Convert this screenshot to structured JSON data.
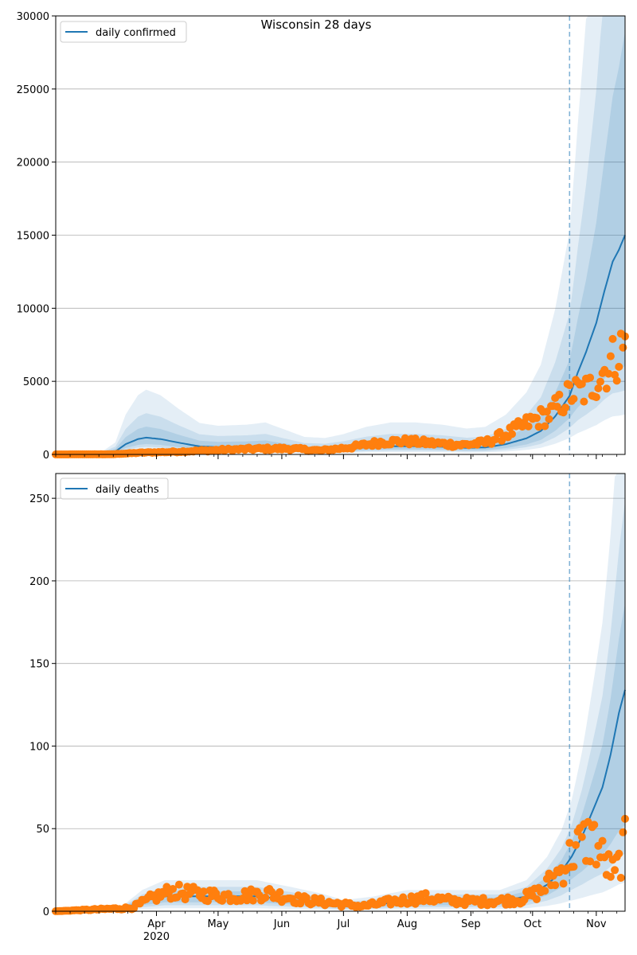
{
  "title": "Wisconsin 28 days",
  "chart_data": [
    {
      "type": "line",
      "legend": "daily confirmed",
      "legend_position": "upper-left",
      "grid": "horizontal",
      "ylim": [
        0,
        30000
      ],
      "yticks": [
        0,
        5000,
        10000,
        15000,
        20000,
        25000,
        30000
      ],
      "ytick_labels": [
        "0",
        "5000",
        "10000",
        "15000",
        "20000",
        "25000",
        "30000"
      ],
      "xlim": [
        "2020-02-12",
        "2020-11-15"
      ],
      "forecast_start": "2020-10-19",
      "line_color": "#1f77b4",
      "band_color": "#1f77b4",
      "points_color": "#ff7f0e",
      "model_line": [
        [
          "2020-02-12",
          0
        ],
        [
          "2020-03-05",
          20
        ],
        [
          "2020-03-12",
          200
        ],
        [
          "2020-03-17",
          700
        ],
        [
          "2020-03-23",
          1050
        ],
        [
          "2020-03-27",
          1150
        ],
        [
          "2020-04-03",
          1050
        ],
        [
          "2020-04-12",
          800
        ],
        [
          "2020-04-22",
          550
        ],
        [
          "2020-05-01",
          500
        ],
        [
          "2020-05-15",
          520
        ],
        [
          "2020-05-24",
          560
        ],
        [
          "2020-06-01",
          450
        ],
        [
          "2020-06-12",
          300
        ],
        [
          "2020-06-22",
          280
        ],
        [
          "2020-07-01",
          350
        ],
        [
          "2020-07-12",
          480
        ],
        [
          "2020-07-24",
          560
        ],
        [
          "2020-08-05",
          560
        ],
        [
          "2020-08-18",
          520
        ],
        [
          "2020-08-30",
          450
        ],
        [
          "2020-09-08",
          480
        ],
        [
          "2020-09-18",
          700
        ],
        [
          "2020-09-28",
          1100
        ],
        [
          "2020-10-05",
          1600
        ],
        [
          "2020-10-12",
          2600
        ],
        [
          "2020-10-19",
          4000
        ],
        [
          "2020-10-23",
          5600
        ],
        [
          "2020-10-27",
          7000
        ],
        [
          "2020-11-01",
          9000
        ],
        [
          "2020-11-05",
          11200
        ],
        [
          "2020-11-09",
          13200
        ],
        [
          "2020-11-12",
          14000
        ],
        [
          "2020-11-15",
          15000
        ]
      ],
      "bands": [
        {
          "label": "outer",
          "lower": 0.28,
          "upper": 3.8
        },
        {
          "label": "middle",
          "lower": 0.45,
          "upper": 2.4
        },
        {
          "label": "inner",
          "lower": 0.62,
          "upper": 1.6
        }
      ],
      "observed_trend": [
        [
          "2020-02-12",
          0
        ],
        [
          "2020-03-10",
          10
        ],
        [
          "2020-03-25",
          120
        ],
        [
          "2020-04-10",
          180
        ],
        [
          "2020-05-01",
          300
        ],
        [
          "2020-05-20",
          380
        ],
        [
          "2020-06-05",
          400
        ],
        [
          "2020-06-20",
          260
        ],
        [
          "2020-07-05",
          500
        ],
        [
          "2020-07-20",
          850
        ],
        [
          "2020-08-01",
          900
        ],
        [
          "2020-08-15",
          750
        ],
        [
          "2020-08-28",
          650
        ],
        [
          "2020-09-08",
          800
        ],
        [
          "2020-09-20",
          1500
        ],
        [
          "2020-10-01",
          2300
        ],
        [
          "2020-10-10",
          2800
        ],
        [
          "2020-10-20",
          4200
        ],
        [
          "2020-10-28",
          4400
        ],
        [
          "2020-11-05",
          5800
        ],
        [
          "2020-11-10",
          6600
        ],
        [
          "2020-11-15",
          7500
        ]
      ],
      "observed_spread": 0.28
    },
    {
      "type": "line",
      "legend": "daily deaths",
      "legend_position": "upper-left",
      "grid": "horizontal",
      "ylim": [
        0,
        265
      ],
      "yticks": [
        0,
        50,
        100,
        150,
        200,
        250
      ],
      "ytick_labels": [
        "0",
        "50",
        "100",
        "150",
        "200",
        "250"
      ],
      "xlim": [
        "2020-02-12",
        "2020-11-15"
      ],
      "xticks": [
        "2020-04-01",
        "2020-05-01",
        "2020-06-01",
        "2020-07-01",
        "2020-08-01",
        "2020-09-01",
        "2020-10-01",
        "2020-11-01"
      ],
      "xtick_labels": [
        "Apr",
        "May",
        "Jun",
        "Jul",
        "Aug",
        "Sep",
        "Oct",
        "Nov"
      ],
      "xtick_year_label": "2020",
      "forecast_start": "2020-10-19",
      "line_color": "#1f77b4",
      "band_color": "#1f77b4",
      "points_color": "#ff7f0e",
      "model_line": [
        [
          "2020-02-12",
          0
        ],
        [
          "2020-03-15",
          1
        ],
        [
          "2020-03-25",
          6
        ],
        [
          "2020-04-05",
          9
        ],
        [
          "2020-04-20",
          9
        ],
        [
          "2020-05-05",
          9
        ],
        [
          "2020-05-20",
          9
        ],
        [
          "2020-06-05",
          7
        ],
        [
          "2020-06-20",
          5
        ],
        [
          "2020-07-01",
          3
        ],
        [
          "2020-07-15",
          4
        ],
        [
          "2020-08-01",
          6
        ],
        [
          "2020-08-15",
          6
        ],
        [
          "2020-09-01",
          6
        ],
        [
          "2020-09-15",
          6
        ],
        [
          "2020-09-28",
          9
        ],
        [
          "2020-10-08",
          16
        ],
        [
          "2020-10-15",
          24
        ],
        [
          "2020-10-20",
          33
        ],
        [
          "2020-10-25",
          45
        ],
        [
          "2020-10-30",
          60
        ],
        [
          "2020-11-04",
          75
        ],
        [
          "2020-11-08",
          95
        ],
        [
          "2020-11-12",
          120
        ],
        [
          "2020-11-15",
          134
        ]
      ],
      "bands": [
        {
          "label": "outer",
          "lower": 0.2,
          "upper": 2.0
        },
        {
          "label": "middle",
          "lower": 0.4,
          "upper": 1.55
        },
        {
          "label": "inner",
          "lower": 0.6,
          "upper": 1.25
        }
      ],
      "observed_trend": [
        [
          "2020-02-12",
          0
        ],
        [
          "2020-03-20",
          2
        ],
        [
          "2020-03-30",
          8
        ],
        [
          "2020-04-08",
          12
        ],
        [
          "2020-04-25",
          10
        ],
        [
          "2020-05-10",
          9
        ],
        [
          "2020-05-25",
          11
        ],
        [
          "2020-06-10",
          7
        ],
        [
          "2020-06-25",
          5
        ],
        [
          "2020-07-10",
          3
        ],
        [
          "2020-07-25",
          6
        ],
        [
          "2020-08-10",
          8
        ],
        [
          "2020-08-25",
          6
        ],
        [
          "2020-09-10",
          6
        ],
        [
          "2020-09-25",
          7
        ],
        [
          "2020-10-05",
          12
        ],
        [
          "2020-10-15",
          25
        ],
        [
          "2020-10-22",
          38
        ],
        [
          "2020-10-30",
          45
        ],
        [
          "2020-11-05",
          30
        ],
        [
          "2020-11-10",
          22
        ],
        [
          "2020-11-15",
          40
        ]
      ],
      "observed_spread": 0.4
    }
  ]
}
